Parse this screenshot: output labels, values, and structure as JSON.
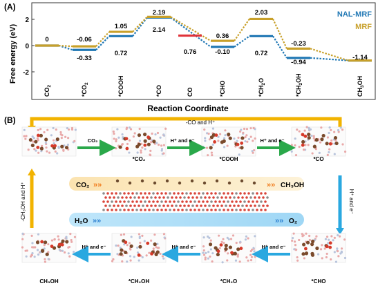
{
  "panel_a": {
    "label": "(A)",
    "y_axis_title": "Free energy (eV)",
    "x_axis_title": "Reaction Coordinate",
    "y_ticks": [
      "2",
      "0",
      "-2"
    ],
    "legend": [
      {
        "name": "NAL-MRF",
        "color": "#1f77b4"
      },
      {
        "name": "MRF",
        "color": "#c8a02a"
      }
    ],
    "categories": [
      {
        "base": "CO",
        "sub": "2"
      },
      {
        "base": "*CO",
        "sub": "2"
      },
      {
        "base": "*COOH",
        "sub": ""
      },
      {
        "base": "*CO",
        "sub": ""
      },
      {
        "base": "CO",
        "sub": ""
      },
      {
        "base": "*CHO",
        "sub": ""
      },
      {
        "base": "*CH",
        "sub": "2",
        "tail": "O"
      },
      {
        "base": "*CH",
        "sub": "2",
        "tail": "OH"
      },
      {
        "base": "CH",
        "sub": "3",
        "tail": "OH"
      }
    ],
    "energy_labels": [
      {
        "text": "0",
        "color": "#000000"
      },
      {
        "text": "-0.06",
        "color": "#000000"
      },
      {
        "text": "-0.33",
        "color": "#000000"
      },
      {
        "text": "1.05",
        "color": "#000000"
      },
      {
        "text": "0.72",
        "color": "#000000"
      },
      {
        "text": "2.19",
        "color": "#000000"
      },
      {
        "text": "2.14",
        "color": "#000000"
      },
      {
        "text": "0.76",
        "color": "#000000"
      },
      {
        "text": "0.36",
        "color": "#000000"
      },
      {
        "text": "-0.10",
        "color": "#000000"
      },
      {
        "text": "2.03",
        "color": "#000000"
      },
      {
        "text": "0.72",
        "color": "#000000"
      },
      {
        "text": "-0.23",
        "color": "#000000"
      },
      {
        "text": "-0.94",
        "color": "#000000"
      },
      {
        "text": "-1.14",
        "color": "#000000"
      }
    ]
  },
  "chart_data": {
    "type": "line",
    "xlabel": "Reaction Coordinate",
    "ylabel": "Free energy (eV)",
    "ylim": [
      -3,
      2.6
    ],
    "categories": [
      "CO2",
      "*CO2",
      "*COOH",
      "*CO",
      "CO",
      "*CHO",
      "*CH2O",
      "*CH2OH",
      "CH3OH"
    ],
    "series": [
      {
        "name": "NAL-MRF",
        "color": "#1f77b4",
        "x": [
          0,
          1,
          2,
          3,
          5,
          6,
          7,
          8
        ],
        "values": [
          0,
          -0.33,
          0.72,
          2.14,
          -0.1,
          0.72,
          -0.94,
          -1.14
        ]
      },
      {
        "name": "MRF",
        "color": "#c8a02a",
        "x": [
          0,
          1,
          2,
          3,
          5,
          6,
          7,
          8
        ],
        "values": [
          0,
          -0.06,
          1.05,
          2.19,
          0.36,
          2.03,
          -0.23,
          -1.14
        ]
      },
      {
        "name": "",
        "color": "#e0333a",
        "x": [
          4
        ],
        "values": [
          0.76
        ]
      }
    ]
  },
  "panel_b": {
    "label": "(B)",
    "top_loop_label": "-CO and H⁺",
    "left_loop_label": "-CH₃OH and H⁺",
    "right_loop_label": "H⁺ and e⁻",
    "top_row": [
      {
        "arrow_label": "CO₂",
        "state_label": "*CO₂"
      },
      {
        "arrow_label": "H⁺ and e⁻",
        "state_label": "*COOH"
      },
      {
        "arrow_label": "H⁺ and e⁻",
        "state_label": "*CO"
      }
    ],
    "bottom_row_arrows": [
      "H⁺ and e⁻",
      "H⁺ and e⁻",
      "H⁺ and e⁻",
      "H⁺ and e⁻"
    ],
    "bottom_row_states": [
      "CH₃OH",
      "*CH₂OH",
      "*CH₂O",
      "*CHO"
    ],
    "center": {
      "co2_in": "CO₂",
      "ch3oh_out": "CH₃OH",
      "h2o_in": "H₂O",
      "o2_out": "O₂"
    }
  }
}
